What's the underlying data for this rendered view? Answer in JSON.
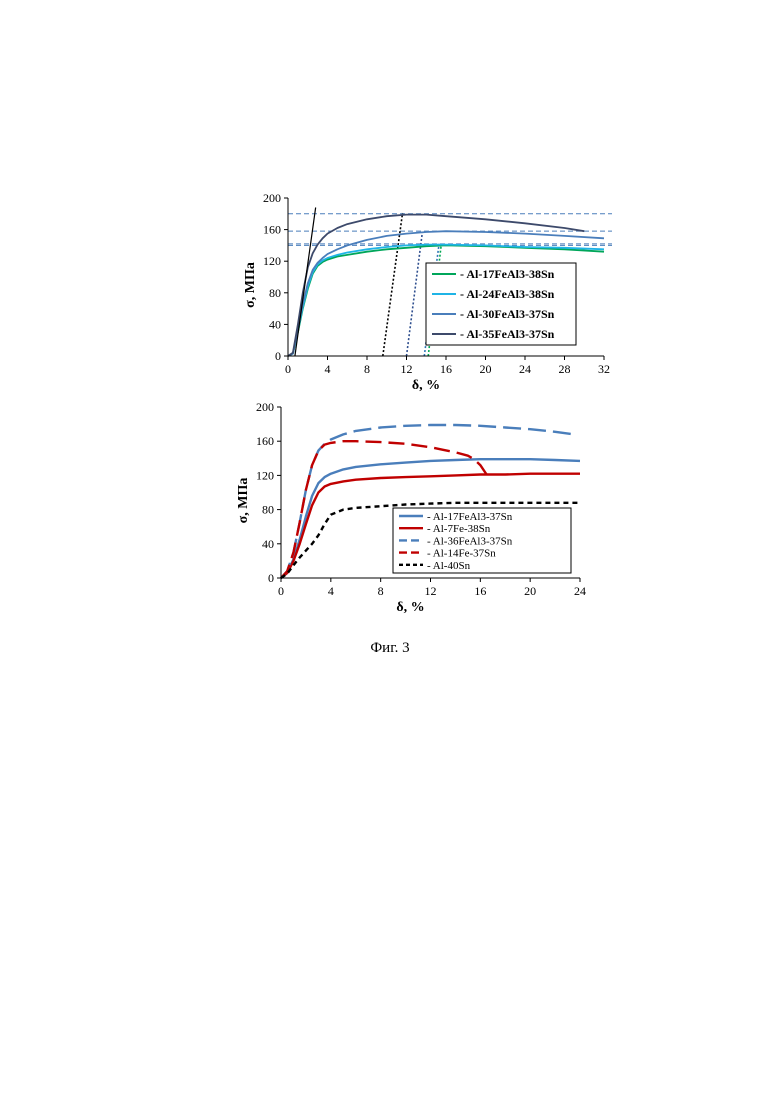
{
  "caption": "Фиг. 3",
  "chart_data": [
    {
      "type": "line",
      "xlabel": "δ, %",
      "ylabel": "σ, МПа",
      "xlim": [
        0,
        32
      ],
      "ylim": [
        0,
        200
      ],
      "xticks": [
        "0",
        "4",
        "8",
        "12",
        "16",
        "20",
        "24",
        "28",
        "32"
      ],
      "yticks": [
        "0",
        "40",
        "80",
        "120",
        "160",
        "200"
      ],
      "legend": "right",
      "reference_lines_y": [
        180,
        158,
        142,
        140
      ],
      "elastic_line": {
        "x": [
          0.7,
          2.8
        ],
        "y": [
          0,
          188
        ]
      },
      "unloading_lines": [
        {
          "color": "#000000",
          "x": [
            9.6,
            11.6
          ],
          "y": [
            0,
            181
          ]
        },
        {
          "color": "#2f4f8f",
          "x": [
            12.0,
            13.6
          ],
          "y": [
            0,
            156
          ]
        },
        {
          "color": "#2e75b6",
          "x": [
            13.8,
            15.3
          ],
          "y": [
            0,
            142
          ]
        },
        {
          "color": "#00a651",
          "x": [
            14.2,
            15.5
          ],
          "y": [
            0,
            139
          ]
        }
      ],
      "series": [
        {
          "name": "- Al-17FeAl3-38Sn",
          "color": "#00a65a",
          "x": [
            0,
            0.5,
            1,
            1.5,
            2,
            2.5,
            3,
            3.5,
            4,
            5,
            6,
            8,
            10,
            12,
            14,
            16,
            20,
            24,
            28,
            32
          ],
          "y": [
            0,
            3,
            30,
            60,
            85,
            104,
            114,
            119,
            122,
            126,
            128,
            132,
            135,
            137,
            139,
            140,
            139,
            137,
            135,
            132
          ]
        },
        {
          "name": "- Al-24FeAl3-38Sn",
          "color": "#1fb4e6",
          "x": [
            0,
            0.5,
            1,
            1.5,
            2,
            2.5,
            3,
            3.5,
            4,
            5,
            6,
            8,
            10,
            12,
            14,
            16,
            20,
            24,
            28,
            32
          ],
          "y": [
            0,
            3,
            32,
            62,
            88,
            106,
            116,
            121,
            124,
            128,
            131,
            135,
            138,
            140,
            141,
            141,
            140,
            138,
            137,
            135
          ]
        },
        {
          "name": "- Al-30FeAl3-37Sn",
          "color": "#4a7ebb",
          "x": [
            0,
            0.5,
            1,
            1.5,
            2,
            2.5,
            3,
            3.5,
            4,
            5,
            6,
            8,
            10,
            12,
            14,
            16,
            20,
            24,
            28,
            32
          ],
          "y": [
            0,
            3,
            34,
            66,
            92,
            109,
            118,
            124,
            129,
            135,
            140,
            147,
            152,
            155,
            157,
            158,
            157,
            155,
            152,
            149
          ]
        },
        {
          "name": "- Al-35FeAl3-37Sn",
          "color": "#3d4a6b",
          "x": [
            0,
            0.5,
            1,
            1.5,
            2,
            2.5,
            3,
            3.5,
            4,
            5,
            6,
            8,
            10,
            12,
            14,
            16,
            20,
            24,
            28,
            30
          ],
          "y": [
            0,
            4,
            40,
            80,
            112,
            130,
            141,
            149,
            155,
            162,
            167,
            173,
            177,
            179,
            179,
            177,
            173,
            168,
            162,
            158
          ]
        }
      ]
    },
    {
      "type": "line",
      "xlabel": "δ, %",
      "ylabel": "σ, МПа",
      "xlim": [
        0,
        24
      ],
      "ylim": [
        0,
        200
      ],
      "xticks": [
        "0",
        "4",
        "8",
        "12",
        "16",
        "20",
        "24"
      ],
      "yticks": [
        "0",
        "40",
        "80",
        "120",
        "160",
        "200"
      ],
      "legend": "bottom-right",
      "series": [
        {
          "name": "- Al-17FeAl3-37Sn",
          "color": "#4a7ebb",
          "dash": "",
          "x": [
            0,
            0.5,
            1,
            1.5,
            2,
            2.5,
            3,
            3.5,
            4,
            5,
            6,
            8,
            10,
            12,
            14,
            16,
            18,
            20,
            22,
            24
          ],
          "y": [
            0,
            6,
            22,
            45,
            72,
            96,
            111,
            118,
            122,
            127,
            130,
            133,
            135,
            137,
            138,
            139,
            139,
            139,
            138,
            137
          ]
        },
        {
          "name": "- Al-7Fe-38Sn",
          "color": "#c00000",
          "dash": "",
          "x": [
            0,
            0.5,
            1,
            1.5,
            2,
            2.5,
            3,
            3.5,
            4,
            5,
            6,
            8,
            10,
            12,
            14,
            16,
            18,
            20,
            22,
            24
          ],
          "y": [
            0,
            6,
            20,
            40,
            63,
            85,
            100,
            107,
            110,
            113,
            115,
            117,
            118,
            119,
            120,
            121,
            121,
            122,
            122,
            122
          ]
        },
        {
          "name": "- Al-36FeAl3-37Sn",
          "color": "#4a7ebb",
          "dash": "18,7",
          "x": [
            0,
            0.5,
            1,
            1.5,
            2,
            2.5,
            3,
            3.5,
            4,
            5,
            6,
            8,
            10,
            12,
            14,
            16,
            18,
            20,
            22,
            23.5
          ],
          "y": [
            0,
            8,
            30,
            65,
            103,
            132,
            149,
            157,
            162,
            168,
            172,
            176,
            178,
            179,
            179,
            178,
            176,
            174,
            171,
            168
          ]
        },
        {
          "name": "- Al-14Fe-37Sn",
          "color": "#c00000",
          "dash": "16,7",
          "x": [
            0,
            0.5,
            1,
            1.5,
            2,
            2.5,
            3,
            3.5,
            4,
            5,
            6,
            8,
            10,
            12,
            13,
            14,
            15,
            15.5,
            16,
            16.5
          ],
          "y": [
            0,
            8,
            30,
            65,
            103,
            132,
            149,
            156,
            158,
            160,
            160,
            159,
            157,
            153,
            150,
            147,
            143,
            139,
            132,
            121
          ]
        },
        {
          "name": "- Al-40Sn",
          "color": "#000000",
          "dash": "5,4",
          "x": [
            0,
            0.5,
            1,
            1.5,
            2,
            2.5,
            3,
            3.5,
            4,
            5,
            6,
            8,
            10,
            12,
            14,
            16,
            18,
            20,
            22,
            24
          ],
          "y": [
            0,
            5,
            15,
            24,
            32,
            40,
            50,
            63,
            74,
            80,
            82,
            84,
            86,
            87,
            88,
            88,
            88,
            88,
            88,
            88
          ]
        }
      ]
    }
  ]
}
